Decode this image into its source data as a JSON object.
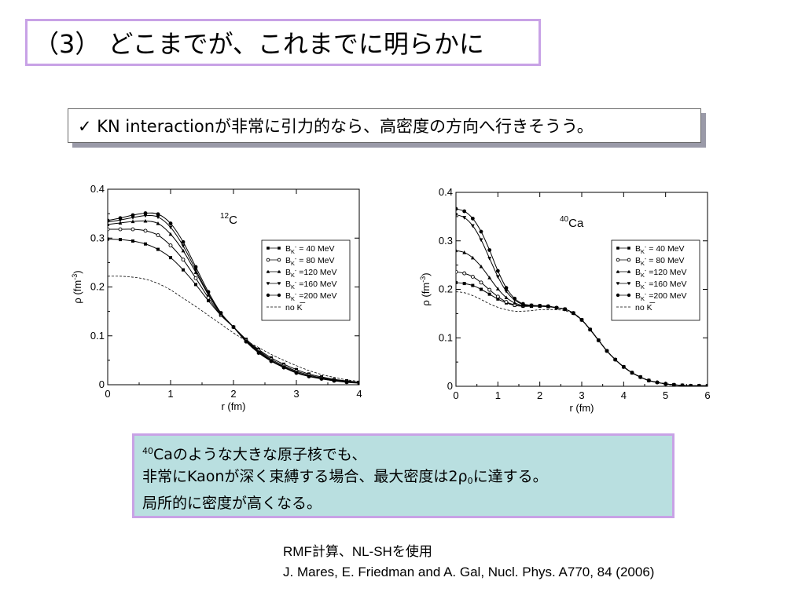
{
  "title": "（3） どこまでが、これまでに明らかに",
  "bullet": "✓ KN interactionが非常に引力的なら、高密度の方向へ行きそうう。",
  "info": {
    "line1_sup": "40",
    "line1_rest": "Caのような大きな原子核でも、",
    "line2_pre": "非常にKaonが深く束縛する場合、最大密度は2ρ",
    "line2_sub": "0",
    "line2_post": "に達する。",
    "line3": "局所的に密度が高くなる。"
  },
  "refs": {
    "line1": "RMF計算、NL-SHを使用",
    "line2": "J. Mares, E. Friedman and A. Gal, Nucl. Phys. A770, 84 (2006)"
  },
  "chart_data": [
    {
      "type": "line",
      "nucleus_sup": "12",
      "nucleus": "C",
      "xlabel": "r (fm)",
      "ylabel": "ρ (fm",
      "ylabel_sup": "-3",
      "ylabel_end": ")",
      "xlim": [
        0,
        4
      ],
      "ylim": [
        0,
        0.4
      ],
      "xticks": [
        "0",
        "1",
        "2",
        "3",
        "4"
      ],
      "yticks": [
        "0",
        "0.1",
        "0.2",
        "0.3",
        "0.4"
      ],
      "legend_position": "right",
      "series": [
        {
          "name": "B_K- = 40 MeV",
          "marker": "square",
          "x": [
            0,
            0.2,
            0.4,
            0.6,
            0.8,
            1.0,
            1.2,
            1.4,
            1.6,
            1.8,
            2.0,
            2.2,
            2.4,
            2.6,
            2.8,
            3.0,
            3.2,
            3.4,
            3.6,
            3.8,
            4.0
          ],
          "y": [
            0.298,
            0.297,
            0.294,
            0.288,
            0.277,
            0.26,
            0.235,
            0.205,
            0.172,
            0.142,
            0.118,
            0.093,
            0.072,
            0.055,
            0.042,
            0.031,
            0.022,
            0.016,
            0.011,
            0.008,
            0.005
          ]
        },
        {
          "name": "B_K- = 80 MeV",
          "marker": "circle-open",
          "x": [
            0,
            0.2,
            0.4,
            0.6,
            0.8,
            1.0,
            1.2,
            1.4,
            1.6,
            1.8,
            2.0,
            2.2,
            2.4,
            2.6,
            2.8,
            3.0,
            3.2,
            3.4,
            3.6,
            3.8,
            4.0
          ],
          "y": [
            0.318,
            0.318,
            0.318,
            0.315,
            0.306,
            0.285,
            0.256,
            0.218,
            0.178,
            0.143,
            0.118,
            0.091,
            0.07,
            0.052,
            0.039,
            0.028,
            0.02,
            0.014,
            0.01,
            0.007,
            0.004
          ]
        },
        {
          "name": "B_K- =120 MeV",
          "marker": "triangle-up",
          "x": [
            0,
            0.2,
            0.4,
            0.6,
            0.8,
            1.0,
            1.2,
            1.4,
            1.6,
            1.8,
            2.0,
            2.2,
            2.4,
            2.6,
            2.8,
            3.0,
            3.2,
            3.4,
            3.6,
            3.8,
            4.0
          ],
          "y": [
            0.328,
            0.331,
            0.334,
            0.335,
            0.33,
            0.308,
            0.274,
            0.23,
            0.184,
            0.145,
            0.118,
            0.09,
            0.068,
            0.05,
            0.037,
            0.026,
            0.018,
            0.013,
            0.009,
            0.006,
            0.004
          ]
        },
        {
          "name": "B_K- =160 MeV",
          "marker": "triangle-down",
          "x": [
            0,
            0.2,
            0.4,
            0.6,
            0.8,
            1.0,
            1.2,
            1.4,
            1.6,
            1.8,
            2.0,
            2.2,
            2.4,
            2.6,
            2.8,
            3.0,
            3.2,
            3.4,
            3.6,
            3.8,
            4.0
          ],
          "y": [
            0.333,
            0.337,
            0.342,
            0.346,
            0.343,
            0.322,
            0.284,
            0.235,
            0.186,
            0.146,
            0.118,
            0.089,
            0.066,
            0.049,
            0.036,
            0.025,
            0.017,
            0.012,
            0.008,
            0.006,
            0.004
          ]
        },
        {
          "name": "B_K- =200 MeV",
          "marker": "circle",
          "x": [
            0,
            0.2,
            0.4,
            0.6,
            0.8,
            1.0,
            1.2,
            1.4,
            1.6,
            1.8,
            2.0,
            2.2,
            2.4,
            2.6,
            2.8,
            3.0,
            3.2,
            3.4,
            3.6,
            3.8,
            4.0
          ],
          "y": [
            0.336,
            0.341,
            0.347,
            0.351,
            0.349,
            0.33,
            0.292,
            0.241,
            0.19,
            0.147,
            0.118,
            0.088,
            0.065,
            0.048,
            0.035,
            0.024,
            0.017,
            0.012,
            0.008,
            0.005,
            0.003
          ]
        },
        {
          "name": "no K",
          "marker": "none",
          "dashed": true,
          "x": [
            0,
            0.2,
            0.4,
            0.6,
            0.8,
            1.0,
            1.2,
            1.4,
            1.6,
            1.8,
            2.0,
            2.2,
            2.4,
            2.6,
            2.8,
            3.0,
            3.2,
            3.4,
            3.6,
            3.8,
            4.0
          ],
          "y": [
            0.222,
            0.222,
            0.22,
            0.216,
            0.207,
            0.194,
            0.177,
            0.16,
            0.142,
            0.124,
            0.106,
            0.09,
            0.076,
            0.062,
            0.05,
            0.039,
            0.029,
            0.021,
            0.015,
            0.01,
            0.007
          ]
        }
      ]
    },
    {
      "type": "line",
      "nucleus_sup": "40",
      "nucleus": "Ca",
      "xlabel": "r (fm)",
      "ylabel": "ρ (fm",
      "ylabel_sup": "-3",
      "ylabel_end": ")",
      "xlim": [
        0,
        6
      ],
      "ylim": [
        0,
        0.4
      ],
      "xticks": [
        "0",
        "1",
        "2",
        "3",
        "4",
        "5",
        "6"
      ],
      "yticks": [
        "0",
        "0.1",
        "0.2",
        "0.3",
        "0.4"
      ],
      "legend_position": "right",
      "series": [
        {
          "name": "B_K- = 40 MeV",
          "marker": "square",
          "x": [
            0,
            0.2,
            0.4,
            0.6,
            0.8,
            1.0,
            1.2,
            1.4,
            1.6,
            1.8,
            2.0,
            2.2,
            2.4,
            2.6,
            2.8,
            3.0,
            3.2,
            3.4,
            3.6,
            3.8,
            4.0,
            4.2,
            4.4,
            4.6,
            4.8,
            5.0,
            5.2,
            5.4,
            5.6,
            5.8,
            6.0
          ],
          "y": [
            0.214,
            0.212,
            0.208,
            0.2,
            0.19,
            0.18,
            0.172,
            0.167,
            0.165,
            0.165,
            0.165,
            0.164,
            0.162,
            0.159,
            0.151,
            0.137,
            0.117,
            0.095,
            0.073,
            0.055,
            0.04,
            0.028,
            0.019,
            0.012,
            0.008,
            0.005,
            0.003,
            0.002,
            0.001,
            0.001,
            0.001
          ]
        },
        {
          "name": "B_K- = 80 MeV",
          "marker": "circle-open",
          "x": [
            0,
            0.2,
            0.4,
            0.6,
            0.8,
            1.0,
            1.2,
            1.4,
            1.6,
            1.8,
            2.0,
            2.2,
            2.4,
            2.6,
            2.8,
            3.0,
            3.2,
            3.4,
            3.6,
            3.8,
            4.0,
            4.2,
            4.4,
            4.6,
            4.8,
            5.0,
            5.2,
            5.4,
            5.6,
            5.8,
            6.0
          ],
          "y": [
            0.236,
            0.233,
            0.226,
            0.214,
            0.199,
            0.185,
            0.174,
            0.168,
            0.166,
            0.166,
            0.166,
            0.165,
            0.162,
            0.159,
            0.151,
            0.137,
            0.117,
            0.095,
            0.073,
            0.055,
            0.04,
            0.028,
            0.019,
            0.012,
            0.008,
            0.005,
            0.003,
            0.002,
            0.001,
            0.001,
            0.001
          ]
        },
        {
          "name": "B_K- =120 MeV",
          "marker": "triangle-up",
          "x": [
            0,
            0.2,
            0.4,
            0.6,
            0.8,
            1.0,
            1.2,
            1.4,
            1.6,
            1.8,
            2.0,
            2.2,
            2.4,
            2.6,
            2.8,
            3.0,
            3.2,
            3.4,
            3.6,
            3.8,
            4.0,
            4.2,
            4.4,
            4.6,
            4.8,
            5.0,
            5.2,
            5.4,
            5.6,
            5.8,
            6.0
          ],
          "y": [
            0.28,
            0.276,
            0.265,
            0.247,
            0.224,
            0.201,
            0.183,
            0.172,
            0.167,
            0.166,
            0.166,
            0.165,
            0.162,
            0.159,
            0.151,
            0.137,
            0.117,
            0.095,
            0.073,
            0.055,
            0.04,
            0.028,
            0.019,
            0.012,
            0.008,
            0.005,
            0.003,
            0.002,
            0.001,
            0.001,
            0.001
          ]
        },
        {
          "name": "B_K- =160 MeV",
          "marker": "triangle-down",
          "x": [
            0,
            0.2,
            0.4,
            0.6,
            0.8,
            1.0,
            1.2,
            1.4,
            1.6,
            1.8,
            2.0,
            2.2,
            2.4,
            2.6,
            2.8,
            3.0,
            3.2,
            3.4,
            3.6,
            3.8,
            4.0,
            4.2,
            4.4,
            4.6,
            4.8,
            5.0,
            5.2,
            5.4,
            5.6,
            5.8,
            6.0
          ],
          "y": [
            0.354,
            0.348,
            0.331,
            0.302,
            0.264,
            0.226,
            0.196,
            0.178,
            0.169,
            0.167,
            0.166,
            0.165,
            0.162,
            0.159,
            0.151,
            0.137,
            0.117,
            0.095,
            0.073,
            0.055,
            0.04,
            0.028,
            0.019,
            0.012,
            0.008,
            0.005,
            0.003,
            0.002,
            0.001,
            0.001,
            0.001
          ]
        },
        {
          "name": "B_K- =200 MeV",
          "marker": "circle",
          "x": [
            0,
            0.2,
            0.4,
            0.6,
            0.8,
            1.0,
            1.2,
            1.4,
            1.6,
            1.8,
            2.0,
            2.2,
            2.4,
            2.6,
            2.8,
            3.0,
            3.2,
            3.4,
            3.6,
            3.8,
            4.0,
            4.2,
            4.4,
            4.6,
            4.8,
            5.0,
            5.2,
            5.4,
            5.6,
            5.8,
            6.0
          ],
          "y": [
            0.366,
            0.361,
            0.346,
            0.319,
            0.281,
            0.238,
            0.203,
            0.181,
            0.17,
            0.167,
            0.166,
            0.165,
            0.162,
            0.159,
            0.151,
            0.137,
            0.117,
            0.095,
            0.073,
            0.055,
            0.04,
            0.028,
            0.019,
            0.012,
            0.008,
            0.005,
            0.003,
            0.002,
            0.001,
            0.001,
            0.001
          ]
        },
        {
          "name": "no K",
          "marker": "none",
          "dashed": true,
          "x": [
            0,
            0.2,
            0.4,
            0.6,
            0.8,
            1.0,
            1.2,
            1.4,
            1.6,
            1.8,
            2.0,
            2.2,
            2.4,
            2.6,
            2.8,
            3.0,
            3.2,
            3.4,
            3.6,
            3.8,
            4.0,
            4.2,
            4.4,
            4.6,
            4.8,
            5.0,
            5.2,
            5.4,
            5.6,
            5.8,
            6.0
          ],
          "y": [
            0.195,
            0.193,
            0.187,
            0.179,
            0.17,
            0.163,
            0.158,
            0.155,
            0.155,
            0.156,
            0.158,
            0.158,
            0.158,
            0.156,
            0.149,
            0.136,
            0.117,
            0.095,
            0.073,
            0.055,
            0.04,
            0.028,
            0.019,
            0.012,
            0.008,
            0.005,
            0.003,
            0.002,
            0.001,
            0.001,
            0.001
          ]
        }
      ]
    }
  ]
}
